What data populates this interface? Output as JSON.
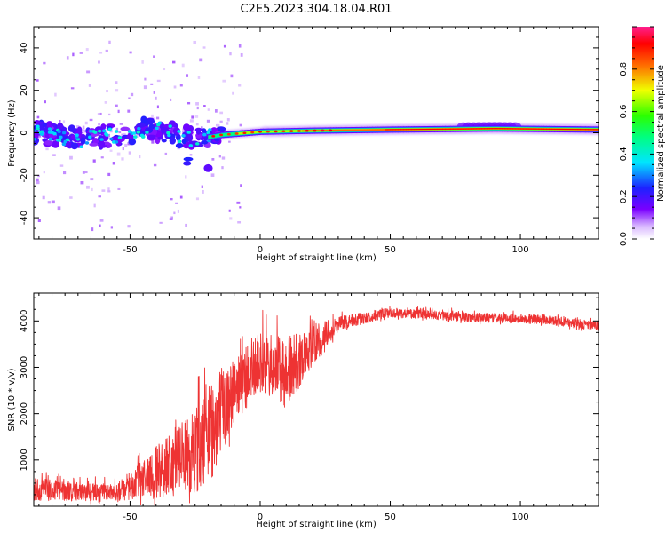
{
  "title": "C2E5.2023.304.18.04.R01",
  "chart_data": [
    {
      "type": "heatmap",
      "name": "spectrogram",
      "xlabel": "Height of straight line (km)",
      "ylabel": "Frequency (Hz)",
      "xlim": [
        -87,
        130
      ],
      "ylim": [
        -50,
        50
      ],
      "xticks": [
        -50,
        0,
        50,
        100
      ],
      "yticks": [
        -40,
        -20,
        0,
        20,
        40
      ],
      "colorbar": {
        "label": "Normalized spectral amplitude",
        "range": [
          0,
          1
        ],
        "ticks": [
          0.0,
          0.2,
          0.4,
          0.6,
          0.8
        ]
      },
      "ridge": {
        "description": "main signal line near 0 Hz; scattered below ~-20 km, continuous above",
        "points": [
          {
            "x": -85,
            "f": 0,
            "amp": 0.3
          },
          {
            "x": -75,
            "f": -2,
            "amp": 0.45
          },
          {
            "x": -65,
            "f": -3,
            "amp": 0.4
          },
          {
            "x": -55,
            "f": -1,
            "amp": 0.45
          },
          {
            "x": -45,
            "f": 2,
            "amp": 0.5
          },
          {
            "x": -35,
            "f": 0,
            "amp": 0.45
          },
          {
            "x": -25,
            "f": -3,
            "amp": 0.4
          },
          {
            "x": -15,
            "f": -1,
            "amp": 0.6
          },
          {
            "x": 0,
            "f": 0.5,
            "amp": 0.8
          },
          {
            "x": 20,
            "f": 1,
            "amp": 0.85
          },
          {
            "x": 50,
            "f": 1.5,
            "amp": 0.95
          },
          {
            "x": 90,
            "f": 2,
            "amp": 0.95
          },
          {
            "x": 130,
            "f": 1.5,
            "amp": 0.95
          }
        ]
      }
    },
    {
      "type": "line",
      "name": "snr",
      "xlabel": "Height of straight line (km)",
      "ylabel": "SNR (10 * v/v)",
      "xlim": [
        -87,
        130
      ],
      "ylim": [
        0,
        4600
      ],
      "xticks": [
        -50,
        0,
        50,
        100
      ],
      "yticks": [
        1000,
        2000,
        3000,
        4000
      ],
      "color": "#ee3333",
      "envelope": [
        {
          "x": -87,
          "base": 300,
          "spread": 500
        },
        {
          "x": -70,
          "base": 250,
          "spread": 400
        },
        {
          "x": -55,
          "base": 250,
          "spread": 350
        },
        {
          "x": -45,
          "base": 450,
          "spread": 900
        },
        {
          "x": -35,
          "base": 700,
          "spread": 1400
        },
        {
          "x": -25,
          "base": 900,
          "spread": 1800
        },
        {
          "x": -18,
          "base": 1400,
          "spread": 2200
        },
        {
          "x": -10,
          "base": 2300,
          "spread": 1400
        },
        {
          "x": 0,
          "base": 2900,
          "spread": 1300
        },
        {
          "x": 10,
          "base": 2600,
          "spread": 1600
        },
        {
          "x": 20,
          "base": 3300,
          "spread": 900
        },
        {
          "x": 30,
          "base": 3900,
          "spread": 300
        },
        {
          "x": 50,
          "base": 4150,
          "spread": 200
        },
        {
          "x": 80,
          "base": 4050,
          "spread": 200
        },
        {
          "x": 110,
          "base": 4000,
          "spread": 200
        },
        {
          "x": 130,
          "base": 3850,
          "spread": 200
        }
      ]
    }
  ]
}
